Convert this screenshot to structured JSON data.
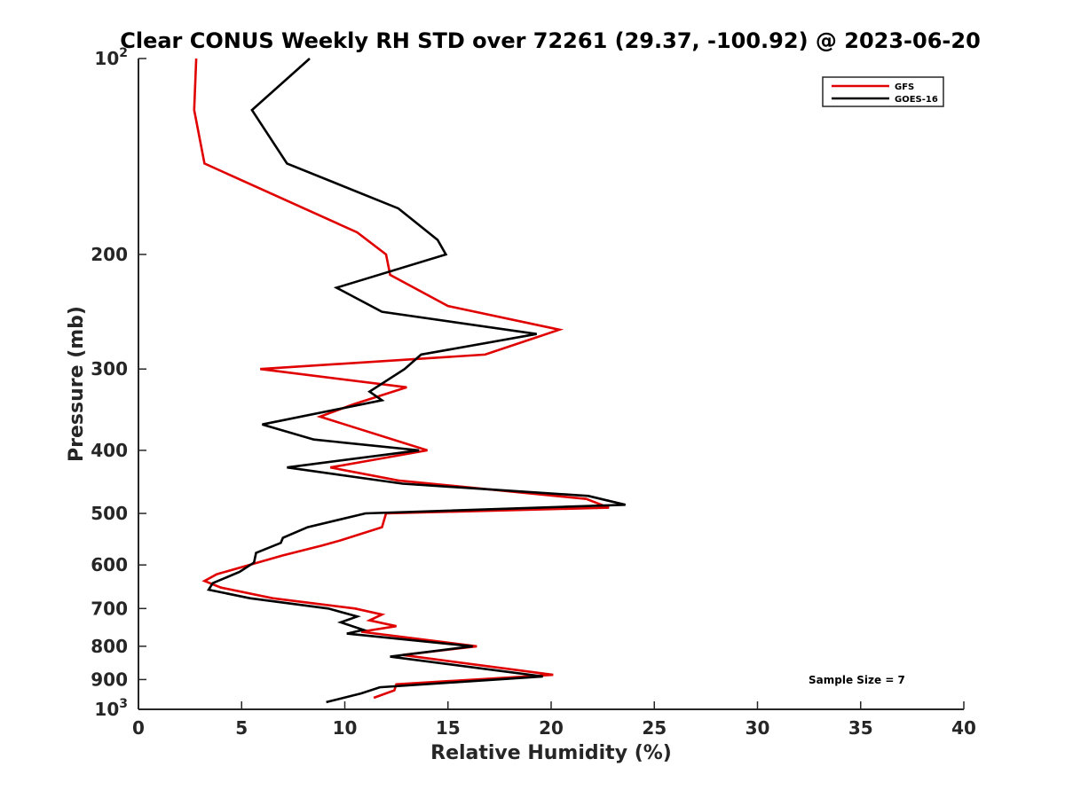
{
  "chart_data": {
    "type": "line",
    "title": "Clear CONUS Weekly RH STD over 72261 (29.37, -100.92) @ 2023-06-20",
    "xlabel": "Relative Humidity (%)",
    "ylabel": "Pressure (mb)",
    "xlim": [
      0,
      40
    ],
    "ylim": [
      100,
      1000
    ],
    "y_scale": "log",
    "y_reversed": true,
    "xticks": [
      "0",
      "5",
      "10",
      "15",
      "20",
      "25",
      "30",
      "35",
      "40"
    ],
    "yticks": [
      {
        "value": 100,
        "base": "10",
        "exp": "2"
      },
      {
        "value": 200,
        "base": "200",
        "exp": ""
      },
      {
        "value": 300,
        "base": "300",
        "exp": ""
      },
      {
        "value": 400,
        "base": "400",
        "exp": ""
      },
      {
        "value": 500,
        "base": "500",
        "exp": ""
      },
      {
        "value": 600,
        "base": "600",
        "exp": ""
      },
      {
        "value": 700,
        "base": "700",
        "exp": ""
      },
      {
        "value": 800,
        "base": "800",
        "exp": ""
      },
      {
        "value": 900,
        "base": "900",
        "exp": ""
      },
      {
        "value": 1000,
        "base": "10",
        "exp": "3"
      }
    ],
    "grid": false,
    "legend_position": "top-right",
    "annotation": "Sample Size = 7",
    "series": [
      {
        "name": "GFS",
        "color": "#e00000",
        "points": [
          [
            2.8,
            100
          ],
          [
            2.7,
            120
          ],
          [
            3.2,
            145
          ],
          [
            10.6,
            185
          ],
          [
            12.0,
            200
          ],
          [
            12.2,
            215
          ],
          [
            15.0,
            240
          ],
          [
            20.4,
            261
          ],
          [
            16.8,
            285
          ],
          [
            5.9,
            300
          ],
          [
            13.0,
            320
          ],
          [
            10.4,
            340
          ],
          [
            8.8,
            355
          ],
          [
            14.0,
            400
          ],
          [
            9.3,
            425
          ],
          [
            12.6,
            445
          ],
          [
            21.7,
            475
          ],
          [
            22.8,
            490
          ],
          [
            12.0,
            500
          ],
          [
            11.8,
            525
          ],
          [
            9.8,
            550
          ],
          [
            8.9,
            560
          ],
          [
            7.0,
            580
          ],
          [
            3.8,
            620
          ],
          [
            3.2,
            635
          ],
          [
            4.0,
            650
          ],
          [
            6.5,
            675
          ],
          [
            10.5,
            700
          ],
          [
            11.8,
            715
          ],
          [
            11.2,
            730
          ],
          [
            12.5,
            745
          ],
          [
            10.8,
            760
          ],
          [
            16.4,
            800
          ],
          [
            12.8,
            825
          ],
          [
            20.1,
            885
          ],
          [
            12.5,
            915
          ],
          [
            12.4,
            935
          ],
          [
            11.4,
            960
          ]
        ]
      },
      {
        "name": "GOES-16",
        "color": "#000000",
        "points": [
          [
            8.3,
            100
          ],
          [
            5.5,
            120
          ],
          [
            7.2,
            145
          ],
          [
            12.6,
            170
          ],
          [
            14.5,
            190
          ],
          [
            14.9,
            200
          ],
          [
            9.6,
            225
          ],
          [
            11.8,
            245
          ],
          [
            19.3,
            265
          ],
          [
            13.7,
            285
          ],
          [
            12.9,
            300
          ],
          [
            11.2,
            325
          ],
          [
            11.8,
            335
          ],
          [
            6.0,
            365
          ],
          [
            8.5,
            385
          ],
          [
            13.6,
            400
          ],
          [
            7.2,
            425
          ],
          [
            12.8,
            450
          ],
          [
            21.8,
            470
          ],
          [
            23.6,
            485
          ],
          [
            11.0,
            500
          ],
          [
            8.2,
            525
          ],
          [
            7.0,
            545
          ],
          [
            6.9,
            555
          ],
          [
            5.7,
            575
          ],
          [
            5.6,
            595
          ],
          [
            4.9,
            615
          ],
          [
            3.6,
            640
          ],
          [
            3.4,
            655
          ],
          [
            5.4,
            675
          ],
          [
            9.2,
            700
          ],
          [
            10.6,
            720
          ],
          [
            9.8,
            735
          ],
          [
            10.9,
            755
          ],
          [
            10.1,
            765
          ],
          [
            16.2,
            800
          ],
          [
            12.2,
            830
          ],
          [
            19.6,
            890
          ],
          [
            11.7,
            925
          ],
          [
            10.8,
            945
          ],
          [
            9.1,
            975
          ]
        ]
      }
    ]
  }
}
